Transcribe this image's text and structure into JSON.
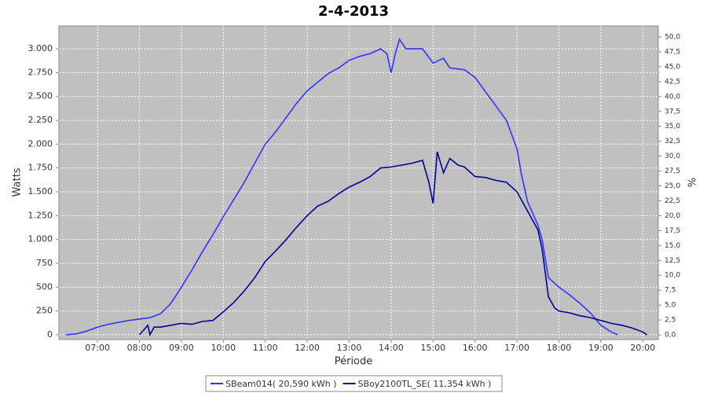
{
  "chart_data": {
    "type": "line",
    "title": "2-4-2013",
    "xlabel": "Période",
    "ylabel": "Watts",
    "y2label": "%",
    "xlim": [
      6.08,
      20.37
    ],
    "ylim": [
      -50,
      3240
    ],
    "y2lim": [
      -0.79,
      51.85
    ],
    "grid": true,
    "legend": "bottom",
    "xticks": [
      {
        "value": 7,
        "label": "07:00"
      },
      {
        "value": 8,
        "label": "08:00"
      },
      {
        "value": 9,
        "label": "09:00"
      },
      {
        "value": 10,
        "label": "10:00"
      },
      {
        "value": 11,
        "label": "11:00"
      },
      {
        "value": 12,
        "label": "12:00"
      },
      {
        "value": 13,
        "label": "13:00"
      },
      {
        "value": 14,
        "label": "14:00"
      },
      {
        "value": 15,
        "label": "15:00"
      },
      {
        "value": 16,
        "label": "16:00"
      },
      {
        "value": 17,
        "label": "17:00"
      },
      {
        "value": 18,
        "label": "18:00"
      },
      {
        "value": 19,
        "label": "19:00"
      },
      {
        "value": 20,
        "label": "20:00"
      }
    ],
    "yticks": [
      0,
      250,
      500,
      750,
      {
        "value": 1000,
        "label": "1.000"
      },
      {
        "value": 1250,
        "label": "1.250"
      },
      {
        "value": 1500,
        "label": "1.500"
      },
      {
        "value": 1750,
        "label": "1.750"
      },
      {
        "value": 2000,
        "label": "2.000"
      },
      {
        "value": 2250,
        "label": "2.250"
      },
      {
        "value": 2500,
        "label": "2.500"
      },
      {
        "value": 2750,
        "label": "2.750"
      },
      {
        "value": 3000,
        "label": "3.000"
      }
    ],
    "y2ticks": [
      {
        "value": 0,
        "label": "0,0"
      },
      {
        "value": 2.5,
        "label": "2,5"
      },
      {
        "value": 5,
        "label": "5,0"
      },
      {
        "value": 7.5,
        "label": "7,5"
      },
      {
        "value": 10,
        "label": "10,0"
      },
      {
        "value": 12.5,
        "label": "12,5"
      },
      {
        "value": 15,
        "label": "15,0"
      },
      {
        "value": 17.5,
        "label": "17,5"
      },
      {
        "value": 20,
        "label": "20,0"
      },
      {
        "value": 22.5,
        "label": "22,5"
      },
      {
        "value": 25,
        "label": "25,0"
      },
      {
        "value": 27.5,
        "label": "27,5"
      },
      {
        "value": 30,
        "label": "30,0"
      },
      {
        "value": 32.5,
        "label": "32,5"
      },
      {
        "value": 35,
        "label": "35,0"
      },
      {
        "value": 37.5,
        "label": "37,5"
      },
      {
        "value": 40,
        "label": "40,0"
      },
      {
        "value": 42.5,
        "label": "42,5"
      },
      {
        "value": 45,
        "label": "45,0"
      },
      {
        "value": 47.5,
        "label": "47,5"
      },
      {
        "value": 50,
        "label": "50,0"
      }
    ],
    "series": [
      {
        "name": "SBeam014( 20,590 kWh )",
        "color": "#3333ff",
        "x": [
          6.25,
          6.5,
          6.75,
          7,
          7.25,
          7.5,
          7.75,
          8,
          8.25,
          8.5,
          8.75,
          9,
          9.25,
          9.5,
          9.75,
          10,
          10.25,
          10.5,
          10.75,
          11,
          11.25,
          11.5,
          11.75,
          12,
          12.25,
          12.5,
          12.75,
          13,
          13.25,
          13.5,
          13.75,
          13.9,
          14,
          14.1,
          14.2,
          14.35,
          14.75,
          15,
          15.25,
          15.4,
          15.75,
          16,
          16.25,
          16.5,
          16.75,
          17,
          17.1,
          17.25,
          17.5,
          17.6,
          17.75,
          18,
          18.25,
          18.5,
          18.75,
          19,
          19.25,
          19.4
        ],
        "values": [
          0,
          10,
          40,
          80,
          110,
          130,
          150,
          165,
          180,
          220,
          330,
          500,
          680,
          870,
          1050,
          1240,
          1420,
          1600,
          1800,
          2000,
          2130,
          2280,
          2430,
          2560,
          2650,
          2740,
          2800,
          2880,
          2920,
          2950,
          3000,
          2950,
          2750,
          2950,
          3100,
          3000,
          3000,
          2850,
          2900,
          2800,
          2780,
          2700,
          2550,
          2400,
          2250,
          1950,
          1700,
          1400,
          1150,
          1000,
          600,
          500,
          420,
          330,
          230,
          100,
          30,
          0
        ]
      },
      {
        "name": "SBoy2100TL_SE( 11,354 kWh )",
        "color": "#000099",
        "x": [
          8,
          8.1,
          8.2,
          8.25,
          8.35,
          8.5,
          8.75,
          9,
          9.25,
          9.5,
          9.75,
          10,
          10.25,
          10.5,
          10.75,
          11,
          11.25,
          11.5,
          11.75,
          12,
          12.25,
          12.5,
          12.75,
          13,
          13.25,
          13.5,
          13.75,
          14,
          14.25,
          14.5,
          14.75,
          14.9,
          15,
          15.1,
          15.25,
          15.4,
          15.6,
          15.75,
          16,
          16.25,
          16.5,
          16.75,
          17,
          17.25,
          17.5,
          17.6,
          17.75,
          17.9,
          18,
          18.25,
          18.5,
          18.75,
          19,
          19.25,
          19.5,
          19.75,
          20,
          20.1
        ],
        "values": [
          0,
          50,
          100,
          0,
          80,
          80,
          100,
          120,
          110,
          140,
          150,
          240,
          340,
          460,
          600,
          770,
          880,
          1000,
          1130,
          1250,
          1350,
          1400,
          1480,
          1550,
          1600,
          1660,
          1750,
          1760,
          1780,
          1800,
          1830,
          1600,
          1380,
          1920,
          1700,
          1850,
          1780,
          1760,
          1660,
          1650,
          1620,
          1600,
          1500,
          1300,
          1100,
          900,
          400,
          280,
          250,
          230,
          200,
          180,
          150,
          120,
          100,
          70,
          30,
          0
        ]
      }
    ]
  }
}
